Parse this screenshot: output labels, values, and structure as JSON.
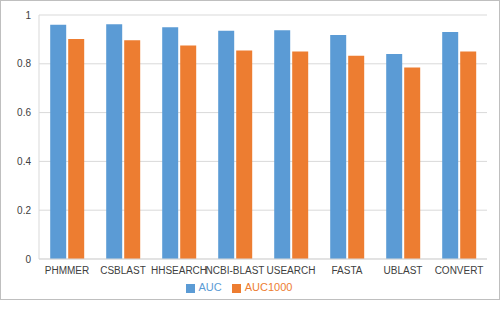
{
  "chart_data": {
    "type": "bar",
    "categories": [
      "PHMMER",
      "CSBLAST",
      "HHSEARCH",
      "NCBI-BLAST",
      "USEARCH",
      "FASTA",
      "UBLAST",
      "CONVERT"
    ],
    "series": [
      {
        "name": "AUC",
        "color": "#5b9bd5",
        "values": [
          0.96,
          0.962,
          0.95,
          0.935,
          0.937,
          0.918,
          0.84,
          0.93
        ]
      },
      {
        "name": "AUC1000",
        "color": "#ed7d31",
        "values": [
          0.902,
          0.897,
          0.875,
          0.855,
          0.85,
          0.833,
          0.785,
          0.85
        ]
      }
    ],
    "ylim": [
      0,
      1
    ],
    "yticks": [
      0,
      0.2,
      0.4,
      0.6,
      0.8,
      1
    ],
    "grid": true,
    "legend": "bottom"
  }
}
